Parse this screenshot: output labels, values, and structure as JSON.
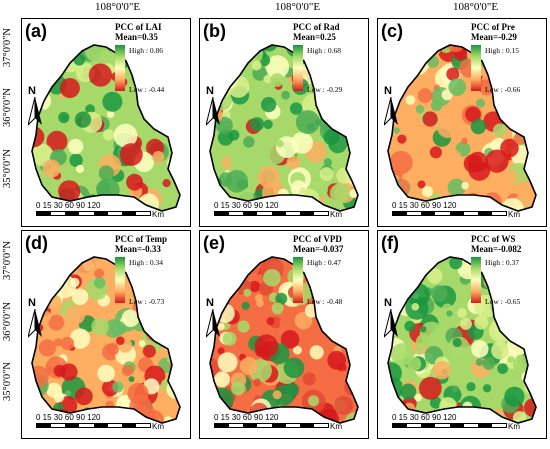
{
  "axes": {
    "top_lon_label": "108°0'0\"E",
    "lat_labels": [
      "37°0'0\"N",
      "36°0'0\"N",
      "35°0'0\"N"
    ]
  },
  "scale": {
    "ticks": "0 15 30   60   90   120",
    "unit": "Km"
  },
  "north_label": "N",
  "legend_colors": [
    "#1a9641",
    "#a6d96a",
    "#ffffbf",
    "#fdae61",
    "#d7191c"
  ],
  "panels": [
    {
      "id": "a",
      "label": "(a)",
      "title": "PCC of LAI",
      "mean": "Mean=0.35",
      "high": "High : 0.86",
      "low": "Low : -0.44",
      "dominant": "green"
    },
    {
      "id": "b",
      "label": "(b)",
      "title": "PCC of Rad",
      "mean": "Mean=0.25",
      "high": "High : 0.68",
      "low": "Low : -0.29",
      "dominant": "green"
    },
    {
      "id": "c",
      "label": "(c)",
      "title": "PCC of Pre",
      "mean": "Mean=-0.29",
      "high": "High : 0.15",
      "low": "Low : -0.66",
      "dominant": "mixed-red"
    },
    {
      "id": "d",
      "label": "(d)",
      "title": "PCC of Temp",
      "mean": "Mean=-0.33",
      "high": "High : 0.34",
      "low": "Low : -0.73",
      "dominant": "mixed-red"
    },
    {
      "id": "e",
      "label": "(e)",
      "title": "PCC of VPD",
      "mean": "Mean=-0.037",
      "high": "High : 0.47",
      "low": "Low : -0.48",
      "dominant": "red"
    },
    {
      "id": "f",
      "label": "(f)",
      "title": "PCC of WS",
      "mean": "Mean=-0.082",
      "high": "High : 0.37",
      "low": "Low : -0.65",
      "dominant": "green"
    }
  ]
}
